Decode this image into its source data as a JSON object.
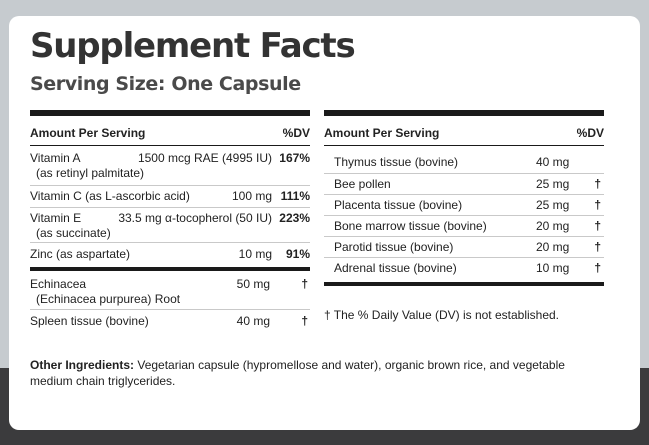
{
  "title": "Supplement Facts",
  "serving_size": "Serving Size: One Capsule",
  "left_table": {
    "header_amount": "Amount Per Serving",
    "header_dv": "%DV",
    "vit_a": {
      "name": "Vitamin A",
      "sub": "(as retinyl palmitate)",
      "amount": "1500 mcg RAE (4995 IU)",
      "dv": "167%"
    },
    "vit_c": {
      "name": "Vitamin C (as L-ascorbic acid)",
      "amount": "100 mg",
      "dv": "111%"
    },
    "vit_e": {
      "name": "Vitamin E",
      "sub": "(as succinate)",
      "amount": "33.5 mg α-tocopherol (50 IU)",
      "dv": "223%"
    },
    "zinc": {
      "name": "Zinc (as aspartate)",
      "amount": "10 mg",
      "dv": "91%"
    },
    "echinacea": {
      "name": "Echinacea",
      "sub": "(Echinacea purpurea) Root",
      "amount": "50 mg",
      "dv": "†"
    },
    "spleen": {
      "name": "Spleen tissue (bovine)",
      "amount": "40 mg",
      "dv": "†"
    }
  },
  "right_table": {
    "header_amount": "Amount Per Serving",
    "header_dv": "%DV",
    "rows": [
      {
        "name": "Thymus tissue (bovine)",
        "amount": "40 mg",
        "dv": ""
      },
      {
        "name": "Bee pollen",
        "amount": "25 mg",
        "dv": "†"
      },
      {
        "name": "Placenta tissue (bovine)",
        "amount": "25 mg",
        "dv": "†"
      },
      {
        "name": "Bone marrow tissue (bovine)",
        "amount": "20 mg",
        "dv": "†"
      },
      {
        "name": "Parotid tissue (bovine)",
        "amount": "20 mg",
        "dv": "†"
      },
      {
        "name": "Adrenal tissue (bovine)",
        "amount": "10 mg",
        "dv": "†"
      }
    ],
    "footnote": "† The % Daily Value (DV) is not established."
  },
  "other_ingredients": {
    "label": "Other Ingredients:",
    "text": " Vegetarian capsule (hypromellose and water), organic brown rice, and vegetable medium chain triglycerides."
  }
}
